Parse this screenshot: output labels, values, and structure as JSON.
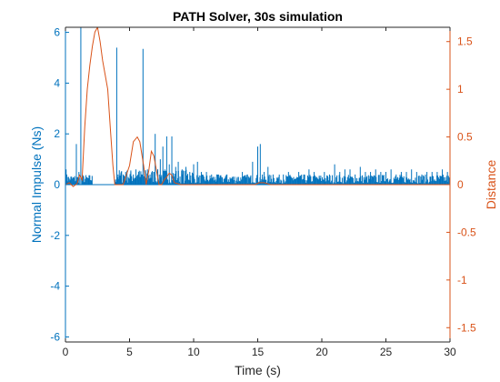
{
  "chart_data": {
    "type": "line",
    "title": "PATH Solver, 30s simulation",
    "xlabel": "Time (s)",
    "ylabel_left": "Normal Impulse (Ns)",
    "ylabel_right": "Distance",
    "xlim": [
      0,
      30
    ],
    "ylim_left": [
      -6.2,
      6.2
    ],
    "ylim_right": [
      -1.65,
      1.65
    ],
    "x_ticks": [
      0,
      5,
      10,
      15,
      20,
      25,
      30
    ],
    "y_left_ticks": [
      -6,
      -4,
      -2,
      0,
      2,
      4,
      6
    ],
    "y_right_ticks": [
      -1.5,
      -1,
      -0.5,
      0,
      0.5,
      1,
      1.5
    ],
    "grid": false,
    "colors": {
      "left_axis": "#0072BD",
      "right_axis": "#D95319",
      "axes_box": "#262626"
    },
    "series": [
      {
        "name": "Normal Impulse",
        "axis": "left",
        "style": "impulse-spikes",
        "color": "#0072BD",
        "x": [
          0.05,
          0.1,
          0.2,
          0.4,
          0.6,
          0.85,
          1.05,
          1.2,
          1.3,
          1.5,
          2.0,
          2.5,
          3.0,
          3.5,
          3.9,
          4.0,
          4.1,
          4.2,
          4.35,
          4.5,
          4.7,
          4.9,
          5.1,
          5.3,
          5.5,
          5.7,
          5.9,
          6.05,
          6.2,
          6.4,
          6.6,
          6.9,
          7.0,
          7.2,
          7.4,
          7.6,
          7.75,
          7.9,
          8.1,
          8.3,
          8.6,
          8.8,
          9.1,
          9.4,
          9.7,
          10.0,
          10.3,
          10.6,
          11.0,
          11.4,
          11.8,
          12.2,
          12.6,
          13.0,
          13.4,
          13.8,
          14.2,
          14.6,
          15.0,
          15.2,
          15.5,
          15.8,
          16.2,
          16.6,
          17.0,
          17.4,
          17.8,
          18.2,
          18.6,
          19.0,
          19.4,
          19.8,
          20.2,
          20.6,
          21.0,
          21.4,
          21.8,
          22.2,
          22.6,
          23.0,
          23.4,
          23.8,
          24.2,
          24.6,
          25.0,
          25.4,
          25.8,
          26.2,
          26.6,
          27.0,
          27.4,
          27.8,
          28.2,
          28.6,
          29.0,
          29.4,
          29.8
        ],
        "values": [
          0.6,
          0.4,
          0.3,
          0.2,
          0.1,
          1.6,
          0.5,
          6.2,
          0.3,
          0.1,
          0.0,
          0.0,
          0.0,
          0.0,
          0.2,
          5.4,
          0.4,
          0.3,
          0.5,
          0.4,
          0.5,
          0.3,
          0.5,
          0.4,
          0.6,
          0.5,
          0.4,
          5.35,
          0.5,
          0.6,
          0.4,
          0.5,
          2.0,
          0.6,
          1.0,
          1.5,
          0.6,
          1.9,
          0.8,
          1.9,
          0.7,
          0.9,
          0.6,
          0.7,
          0.5,
          0.8,
          0.9,
          0.5,
          0.5,
          0.4,
          0.4,
          0.3,
          0.4,
          0.3,
          0.3,
          0.5,
          0.4,
          0.9,
          1.5,
          1.6,
          0.5,
          0.7,
          0.4,
          0.3,
          0.4,
          0.5,
          0.3,
          0.5,
          0.4,
          0.6,
          0.5,
          0.3,
          0.5,
          0.4,
          0.8,
          0.5,
          0.6,
          0.6,
          0.4,
          0.7,
          0.5,
          0.5,
          0.6,
          0.5,
          0.5,
          0.6,
          0.4,
          0.5,
          0.5,
          0.6,
          0.5,
          0.4,
          0.5,
          0.5,
          0.5,
          0.6,
          0.5
        ]
      },
      {
        "name": "Distance",
        "axis": "right",
        "style": "line",
        "color": "#D95319",
        "x": [
          0.0,
          0.3,
          0.6,
          0.9,
          1.1,
          1.3,
          1.5,
          1.7,
          1.9,
          2.1,
          2.3,
          2.5,
          2.7,
          2.9,
          3.1,
          3.3,
          3.5,
          3.7,
          3.85,
          4.0,
          4.5,
          5.0,
          5.3,
          5.6,
          5.8,
          6.1,
          6.3,
          6.5,
          6.7,
          6.9,
          7.1,
          7.3,
          7.5,
          7.7,
          7.9,
          8.1,
          8.3,
          8.5,
          9.0,
          10.0,
          12.0,
          14.0,
          14.8,
          15.1,
          15.5,
          16.0,
          18.0,
          20.0,
          25.0,
          30.0
        ],
        "values": [
          0.0,
          0.02,
          -0.02,
          0.01,
          0.1,
          0.05,
          0.6,
          1.0,
          1.25,
          1.45,
          1.6,
          1.65,
          1.5,
          1.3,
          1.15,
          1.0,
          0.6,
          0.2,
          0.0,
          0.0,
          0.0,
          0.2,
          0.45,
          0.5,
          0.45,
          0.2,
          0.0,
          0.15,
          0.35,
          0.3,
          0.15,
          0.0,
          0.0,
          0.05,
          0.08,
          0.12,
          0.1,
          0.02,
          0.0,
          0.0,
          0.0,
          0.0,
          0.0,
          0.02,
          0.02,
          0.0,
          0.0,
          0.0,
          0.0,
          0.0
        ]
      }
    ]
  }
}
